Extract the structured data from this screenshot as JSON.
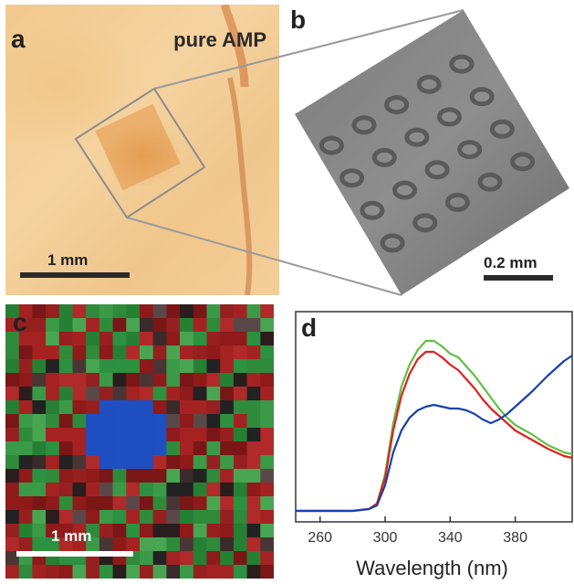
{
  "figure": {
    "panel_a": {
      "label": "a",
      "title": "pure AMP",
      "scale": "1 mm"
    },
    "panel_b": {
      "label": "b",
      "scale": "0.2 mm"
    },
    "panel_c": {
      "label": "c",
      "scale": "1 mm"
    },
    "panel_d": {
      "label": "d",
      "xlabel": "Wavelength (nm)"
    },
    "colors": {
      "red": "#e02020",
      "green": "#60c040",
      "blue": "#1840b0",
      "map_blue": "#1f4fc0"
    }
  },
  "chart_data": {
    "type": "line",
    "title": "",
    "xlabel": "Wavelength (nm)",
    "ylabel": "",
    "xlim": [
      245,
      415
    ],
    "ylim": [
      0,
      1
    ],
    "xticks": [
      "260",
      "300",
      "340",
      "380"
    ],
    "x": [
      245,
      260,
      280,
      290,
      295,
      300,
      305,
      310,
      315,
      320,
      325,
      330,
      335,
      340,
      345,
      350,
      355,
      360,
      365,
      370,
      375,
      380,
      390,
      400,
      410,
      415
    ],
    "series": [
      {
        "color": "#60c040",
        "values": [
          0.02,
          0.02,
          0.02,
          0.03,
          0.06,
          0.22,
          0.5,
          0.7,
          0.82,
          0.9,
          0.95,
          0.95,
          0.92,
          0.88,
          0.86,
          0.81,
          0.76,
          0.7,
          0.64,
          0.58,
          0.53,
          0.49,
          0.44,
          0.38,
          0.34,
          0.33
        ]
      },
      {
        "color": "#e02020",
        "values": [
          0.02,
          0.02,
          0.02,
          0.03,
          0.06,
          0.2,
          0.46,
          0.65,
          0.77,
          0.85,
          0.89,
          0.89,
          0.86,
          0.82,
          0.79,
          0.74,
          0.69,
          0.63,
          0.58,
          0.54,
          0.5,
          0.46,
          0.41,
          0.36,
          0.32,
          0.31
        ]
      },
      {
        "color": "#1840b0",
        "values": [
          0.02,
          0.02,
          0.02,
          0.03,
          0.05,
          0.16,
          0.34,
          0.46,
          0.53,
          0.57,
          0.59,
          0.6,
          0.59,
          0.58,
          0.58,
          0.57,
          0.55,
          0.52,
          0.5,
          0.52,
          0.55,
          0.59,
          0.67,
          0.76,
          0.84,
          0.87
        ]
      }
    ]
  }
}
